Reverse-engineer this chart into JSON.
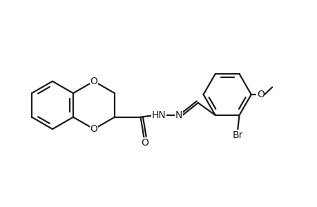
{
  "bg_color": "#ffffff",
  "bond_color": "#1a1a1a",
  "text_color": "#1a1a1a",
  "line_width": 1.6,
  "font_size": 10,
  "figsize": [
    4.6,
    3.0
  ],
  "dpi": 100,
  "xlim": [
    0,
    9.5
  ],
  "ylim": [
    0.5,
    6.0
  ],
  "labels": {
    "O": "O",
    "HN": "HN",
    "N": "N",
    "Br": "Br",
    "methoxy_O": "O"
  }
}
